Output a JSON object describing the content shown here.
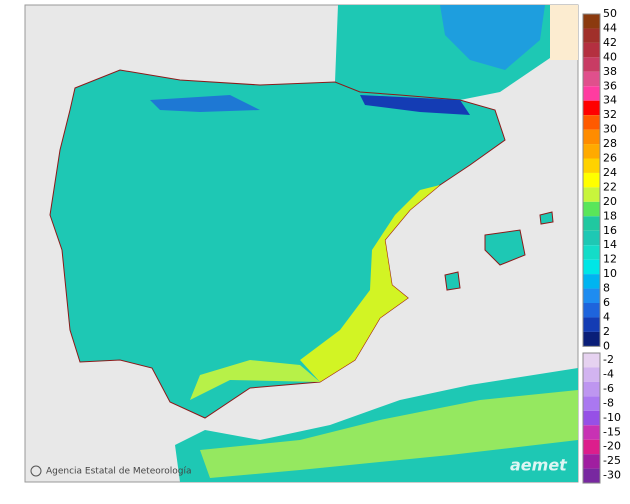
{
  "map": {
    "credit": "Agencia Estatal de Meteorología",
    "logo": "aemet",
    "legend": {
      "positive_labels": [
        50,
        44,
        42,
        40,
        38,
        36,
        34,
        32,
        30,
        28,
        26,
        24,
        22,
        20,
        18,
        16,
        14,
        12,
        10,
        8,
        6,
        4,
        2,
        0
      ],
      "positive_colors": [
        "#8b3a0f",
        "#a0302a",
        "#b43040",
        "#c83c64",
        "#e0508c",
        "#ff3ca0",
        "#ff0000",
        "#ff5a00",
        "#ff8c00",
        "#ffaa00",
        "#ffd200",
        "#ffff00",
        "#c8f53c",
        "#5ae65a",
        "#20c8a0",
        "#1ec8b4",
        "#14dcc8",
        "#00e6e6",
        "#00b4f0",
        "#1e8cf0",
        "#1e64dc",
        "#143cb4",
        "#0a1e78"
      ],
      "negative_labels": [
        -2,
        -4,
        -6,
        -8,
        -10,
        -15,
        -20,
        -25,
        -30
      ],
      "negative_colors": [
        "#e6d2f0",
        "#d2b4f0",
        "#be96f0",
        "#aa78f0",
        "#9650e6",
        "#c832b4",
        "#dc1e8c",
        "#a01ea0",
        "#7828a0"
      ]
    }
  }
}
